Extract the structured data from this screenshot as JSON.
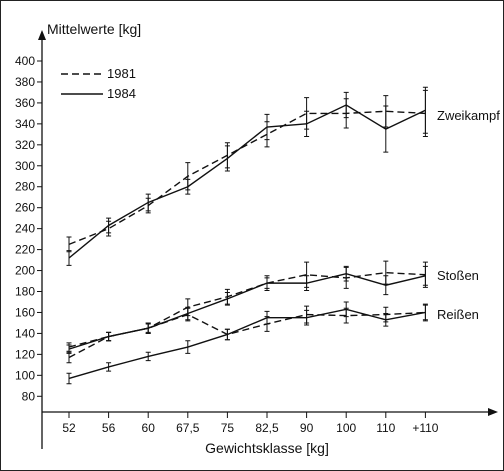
{
  "chart_data": {
    "type": "line",
    "ylabel": "Mittelwerte [kg]",
    "xlabel": "Gewichtsklasse [kg]",
    "categories": [
      "52",
      "56",
      "60",
      "67,5",
      "75",
      "82,5",
      "90",
      "100",
      "110",
      "+110"
    ],
    "ylim": [
      65,
      405
    ],
    "yticks": [
      80,
      100,
      120,
      140,
      160,
      180,
      200,
      220,
      240,
      260,
      280,
      300,
      320,
      340,
      360,
      380,
      400
    ],
    "grid": false,
    "legend": {
      "position": "top-left",
      "entries": [
        "1981",
        "1984"
      ]
    },
    "groups": [
      {
        "label": "Zweikampf",
        "series": [
          {
            "name": "1981",
            "values": [
              225,
              240,
              262,
              290,
              310,
              330,
              350,
              350,
              352,
              350
            ],
            "error": [
              7,
              7,
              7,
              13,
              12,
              12,
              15,
              14,
              15,
              22
            ]
          },
          {
            "name": "1984",
            "values": [
              212,
              243,
              265,
              280,
              307,
              337,
              340,
              358,
              335,
              353
            ],
            "error": [
              7,
              7,
              8,
              7,
              12,
              12,
              12,
              12,
              22,
              22
            ]
          }
        ]
      },
      {
        "label": "Stoßen",
        "series": [
          {
            "name": "1981",
            "values": [
              127,
              137,
              145,
              165,
              175,
              188,
              196,
              193,
              198,
              196
            ],
            "error": [
              4,
              4,
              5,
              8,
              7,
              7,
              12,
              10,
              11,
              12
            ]
          },
          {
            "name": "1984",
            "values": [
              125,
              137,
              145,
              159,
              173,
              188,
              188,
              197,
              186,
              195
            ],
            "error": [
              4,
              4,
              5,
              6,
              6,
              5,
              7,
              7,
              9,
              9
            ]
          }
        ]
      },
      {
        "label": "Reißen",
        "series": [
          {
            "name": "1981",
            "values": [
              117,
              137,
              145,
              158,
              139,
              149,
              158,
              157,
              158,
              160
            ],
            "error": [
              5,
              4,
              4,
              6,
              5,
              7,
              8,
              7,
              7,
              8
            ]
          },
          {
            "name": "1984",
            "values": [
              97,
              108,
              118,
              127,
              139,
              155,
              155,
              163,
              153,
              160
            ],
            "error": [
              5,
              4,
              4,
              6,
              5,
              6,
              7,
              7,
              6,
              7
            ]
          }
        ]
      }
    ]
  }
}
